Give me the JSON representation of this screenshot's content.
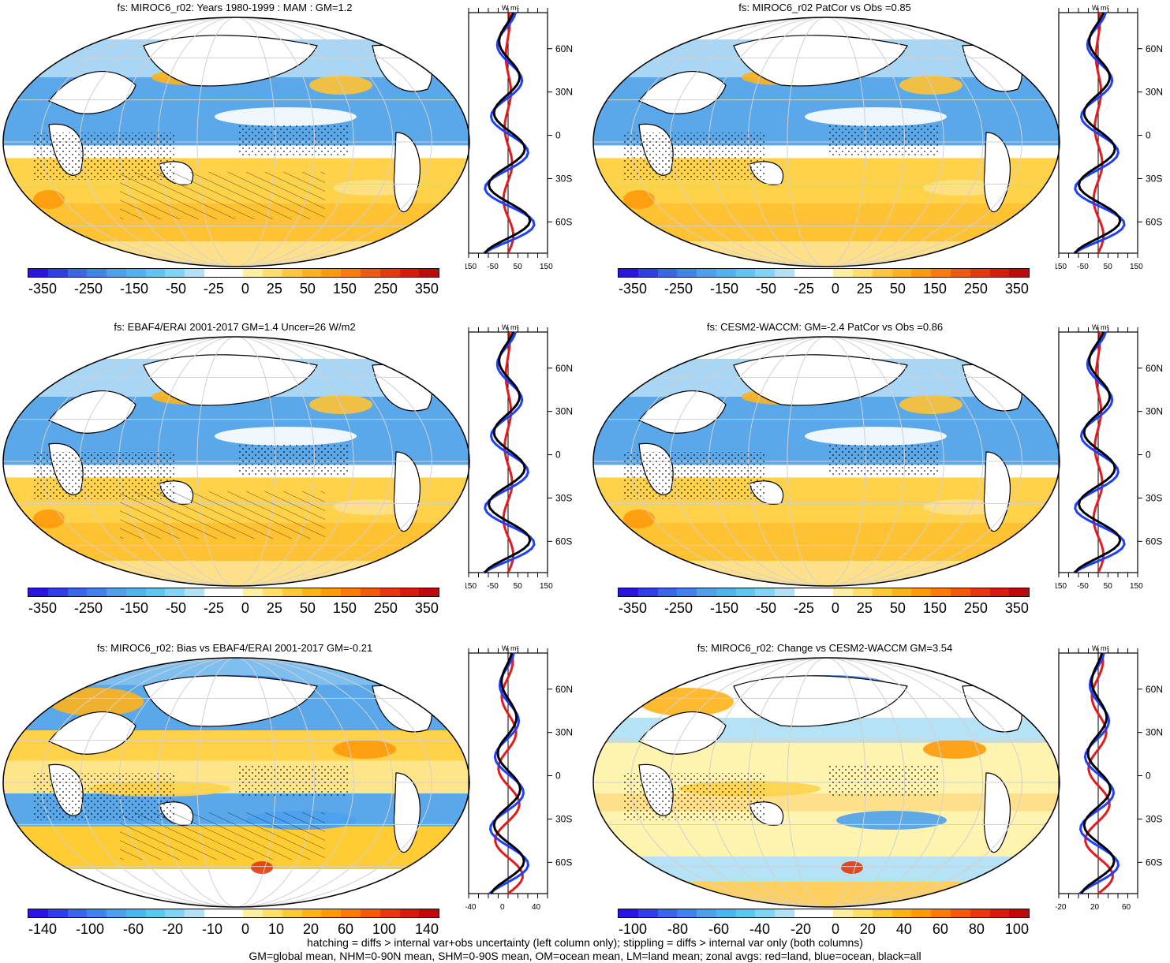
{
  "panels": [
    {
      "title": "fs: MIROC6_r02: Years 1980-1999 : MAM : GM=1.2",
      "scale": "abs",
      "zonal_xticks": [
        "-150",
        "-50",
        "50",
        "150"
      ],
      "regions": [
        "pos-south",
        "neg-tropics",
        "white-north",
        "neg-north",
        "orange-coast-west"
      ]
    },
    {
      "title": "fs: MIROC6_r02 PatCor vs Obs =0.85",
      "scale": "abs",
      "zonal_xticks": [
        "-150",
        "-50",
        "50",
        "150"
      ],
      "regions": [
        "pos-south",
        "neg-tropics",
        "white-north",
        "neg-north"
      ]
    },
    {
      "title": "fs: EBAF4/ERAI 2001-2017 GM=1.4 Uncer=26 W/m2",
      "scale": "abs",
      "zonal_xticks": [
        "-150",
        "-50",
        "50",
        "150"
      ],
      "regions": [
        "pos-south",
        "neg-tropics",
        "white-north",
        "neg-north"
      ]
    },
    {
      "title": "fs: CESM2-WACCM: GM=-2.4 PatCor vs Obs =0.86",
      "scale": "abs",
      "zonal_xticks": [
        "-150",
        "-50",
        "50",
        "150"
      ],
      "regions": [
        "pos-south",
        "neg-tropics",
        "white-north",
        "neg-north"
      ]
    },
    {
      "title": "fs: MIROC6_r02: Bias vs EBAF4/ERAI 2001-2017 GM=-0.21",
      "scale": "diff",
      "zonal_xticks": [
        "-40",
        "0",
        "40"
      ],
      "regions": [
        "mixed"
      ]
    },
    {
      "title": "fs: MIROC6_r02: Change vs CESM2-WACCM GM=3.54",
      "scale": "diff",
      "zonal_xticks": [
        "-20",
        "20",
        "60"
      ],
      "regions": [
        "mixed-light"
      ]
    }
  ],
  "colorbar_abs": [
    "-350",
    "-250",
    "-150",
    "-50",
    "-25",
    "0",
    "25",
    "50",
    "150",
    "250",
    "350"
  ],
  "colorbar_diff_left": [
    "-140",
    "-100",
    "-60",
    "-20",
    "-10",
    "0",
    "10",
    "20",
    "60",
    "100",
    "140"
  ],
  "colorbar_diff_right": [
    "-100",
    "-80",
    "-60",
    "-40",
    "-20",
    "0",
    "20",
    "40",
    "60",
    "80",
    "100"
  ],
  "colorbar_colors": [
    "#2a14e0",
    "#2f3fe6",
    "#3a66e8",
    "#3f84ea",
    "#4da0ec",
    "#4cb4ee",
    "#5cc8f2",
    "#80d4f4",
    "#b4e0f6",
    "#ffffff",
    "#ffffff",
    "#fff0a0",
    "#ffde6a",
    "#ffc83a",
    "#ffb21a",
    "#ff9a0a",
    "#ff7a08",
    "#f05a0a",
    "#e6380c",
    "#d81c0c",
    "#c00a0a"
  ],
  "lat_labels": [
    "60N",
    "30N",
    "0",
    "30S",
    "60S"
  ],
  "units_label": "W m²",
  "legend": {
    "land_color": "#e41a1c",
    "ocean_color": "#1f3fff",
    "all_color": "#000000"
  },
  "footer": {
    "line1": "hatching = diffs > internal var+obs uncertainty (left column only); stippling = diffs > internal var only (both columns)",
    "line2": "GM=global mean, NHM=0-90N mean, SHM=0-90S mean, OM=ocean mean, LM=land mean; zonal avgs: red=land, blue=ocean, black=all"
  }
}
